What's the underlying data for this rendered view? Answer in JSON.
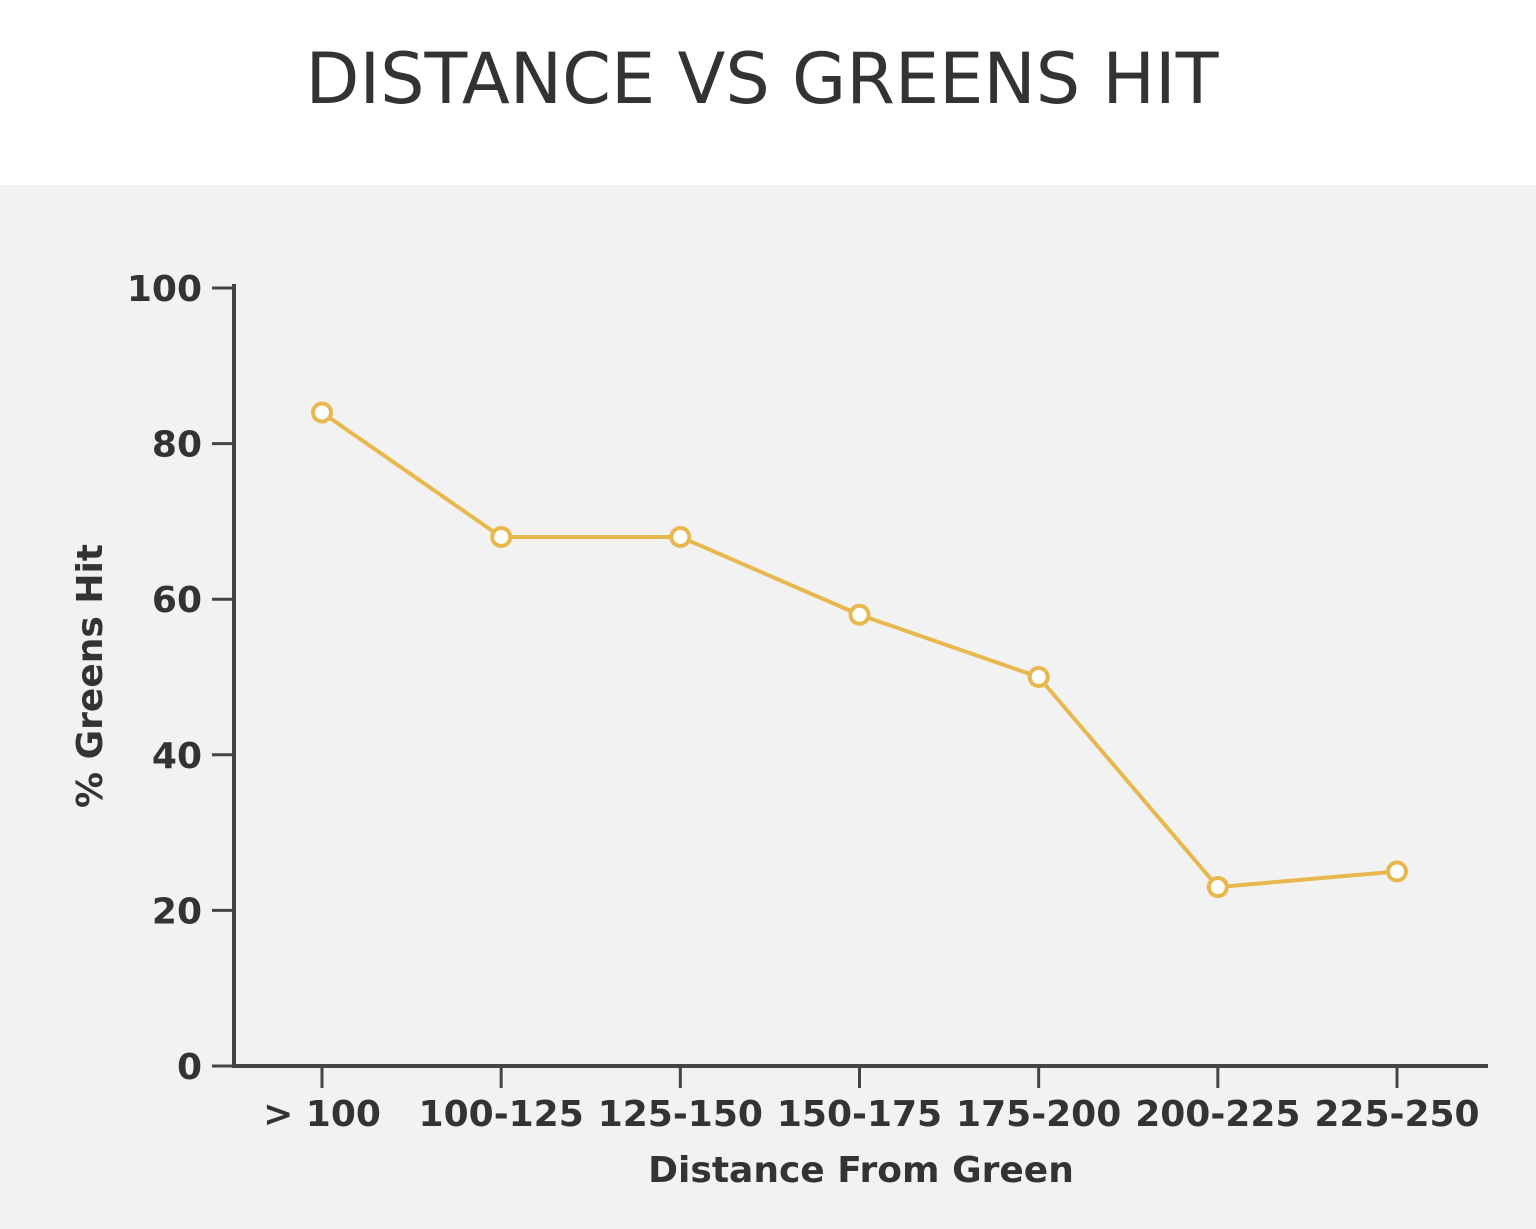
{
  "title": "DISTANCE VS GREENS HIT",
  "colors": {
    "line": "#e8b84f",
    "axis": "#444444",
    "panel_background": "#f2f2f2",
    "text": "#333333"
  },
  "chart_data": {
    "type": "line",
    "title": "DISTANCE VS GREENS HIT",
    "xlabel": "Distance From Green",
    "ylabel": "% Greens Hit",
    "categories": [
      "> 100",
      "100-125",
      "125-150",
      "150-175",
      "175-200",
      "200-225",
      "225-250"
    ],
    "series": [
      {
        "values": [
          84,
          68,
          68,
          58,
          50,
          23,
          25
        ]
      }
    ],
    "ylim": [
      0,
      100
    ],
    "yticks": [
      0,
      20,
      40,
      60,
      80,
      100
    ],
    "grid": false,
    "legend": "none",
    "markers": "hollow-circle"
  }
}
